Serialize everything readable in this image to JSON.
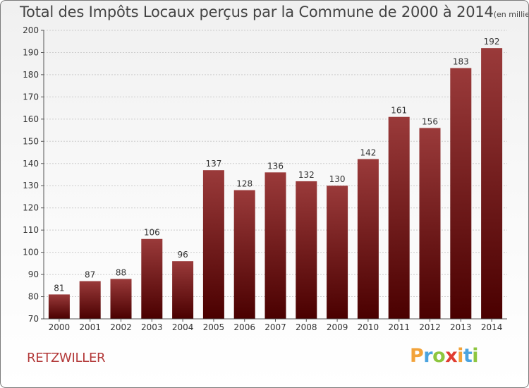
{
  "title": "Total des Impôts Locaux perçus par la Commune de 2000 à 2014",
  "subtitle": "(en milliers d'€)",
  "commune": "RETZWILLER",
  "brand": {
    "letters": [
      "P",
      "r",
      "o",
      "x",
      "i",
      "t",
      "i"
    ],
    "colors": [
      "#f2a33a",
      "#4aa3df",
      "#8dc63f",
      "#e03c31",
      "#f2a33a",
      "#4aa3df",
      "#8dc63f"
    ]
  },
  "colors": {
    "bar_top": "#9a3a3a",
    "bar_bottom": "#4a0000",
    "axis": "#555555",
    "grid": "#cccccc"
  },
  "chart_data": {
    "type": "bar",
    "title": "Total des Impôts Locaux perçus par la Commune de 2000 à 2014",
    "unit": "(en milliers d'€)",
    "categories": [
      "2000",
      "2001",
      "2002",
      "2003",
      "2004",
      "2005",
      "2006",
      "2007",
      "2008",
      "2009",
      "2010",
      "2011",
      "2012",
      "2013",
      "2014"
    ],
    "values": [
      81,
      87,
      88,
      106,
      96,
      137,
      128,
      136,
      132,
      130,
      142,
      161,
      156,
      183,
      192
    ],
    "ylim": [
      70,
      200
    ],
    "yticks": [
      70,
      80,
      90,
      100,
      110,
      120,
      130,
      140,
      150,
      160,
      170,
      180,
      190,
      200
    ],
    "grid": true,
    "xlabel": "",
    "ylabel": ""
  }
}
